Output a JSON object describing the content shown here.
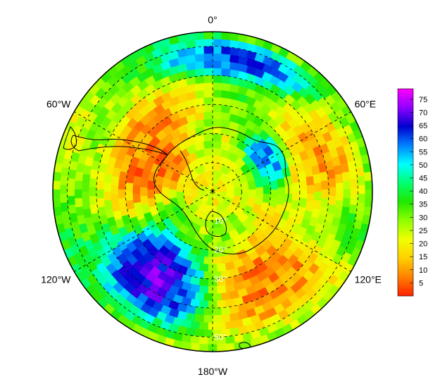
{
  "map": {
    "type": "polar-stereographic-heatmap",
    "hemisphere": "south",
    "longitude_labels": [
      {
        "lon": 0,
        "text": "0°"
      },
      {
        "lon": 60,
        "text": "60°E"
      },
      {
        "lon": 120,
        "text": "120°E"
      },
      {
        "lon": 180,
        "text": "180°W"
      },
      {
        "lon": -120,
        "text": "120°W"
      },
      {
        "lon": -60,
        "text": "60°W"
      }
    ],
    "latitude_labels": [
      {
        "text": "10°"
      },
      {
        "text": "20°"
      },
      {
        "text": "30°"
      },
      {
        "text": "50°"
      }
    ],
    "grid_circles_colatitude": [
      10,
      20,
      30,
      40,
      50
    ],
    "outer_colatitude": 55,
    "grid": "dashed"
  },
  "colorbar": {
    "min": 0,
    "max": 79,
    "ticks": [
      5,
      10,
      15,
      20,
      25,
      30,
      35,
      40,
      45,
      50,
      55,
      60,
      65,
      70,
      75
    ],
    "tick_labels": [
      "5",
      "10",
      "15",
      "20",
      "25",
      "30",
      "35",
      "40",
      "45",
      "50",
      "55",
      "60",
      "65",
      "70",
      "75"
    ],
    "colors": [
      "#ff2000",
      "#ff8000",
      "#ffd000",
      "#f0ff00",
      "#90ff00",
      "#20e800",
      "#00ff70",
      "#00ffff",
      "#0080ff",
      "#0000d0",
      "#9000ff",
      "#ff00ff"
    ]
  },
  "chart_data": {
    "type": "heatmap",
    "value_range": [
      0,
      79
    ],
    "features": [
      {
        "lon_center": 15,
        "colat_center": 46,
        "lon_width": 55,
        "colat_width": 10,
        "value": 68
      },
      {
        "lon_center": 58,
        "colat_center": 22,
        "lon_width": 40,
        "colat_width": 8,
        "value": 60
      },
      {
        "lon_center": -150,
        "colat_center": 35,
        "lon_width": 55,
        "colat_width": 22,
        "value": 75
      },
      {
        "lon_center": -60,
        "colat_center": 25,
        "lon_width": 70,
        "colat_width": 22,
        "value": 3
      },
      {
        "lon_center": 90,
        "colat_center": 40,
        "lon_width": 90,
        "colat_width": 18,
        "value": 8
      },
      {
        "lon_center": 150,
        "colat_center": 35,
        "lon_width": 70,
        "colat_width": 25,
        "value": 5
      },
      {
        "lon_center": 105,
        "colat_center": 42,
        "lon_width": 30,
        "colat_width": 20,
        "value": 50
      },
      {
        "lon_center": 0,
        "colat_center": 5,
        "lon_width": 360,
        "colat_width": 10,
        "value": 18
      }
    ]
  }
}
